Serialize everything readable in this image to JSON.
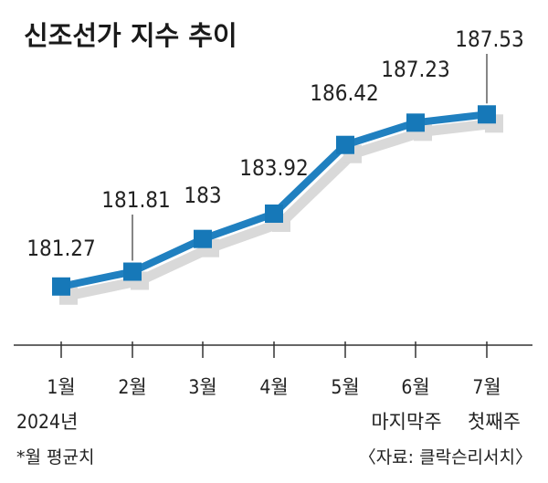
{
  "chart_data": {
    "type": "line",
    "title": "신조선가 지수 추이",
    "categories": [
      "1월",
      "2월",
      "3월",
      "4월",
      "5월",
      "6월",
      "7월"
    ],
    "values": [
      181.27,
      181.81,
      183,
      183.92,
      186.42,
      187.23,
      187.53
    ],
    "value_labels": [
      "181.27",
      "181.81",
      "183",
      "183.92",
      "186.42",
      "187.23",
      "187.53"
    ],
    "year_label": "2024년",
    "sub_labels": {
      "6월": "마지막주",
      "7월": "첫째주"
    },
    "footnote": "*월 평균치",
    "source": "〈자료: 클락슨리서치〉",
    "ylim": [
      180.2,
      189.3
    ],
    "grid": false,
    "colors": {
      "line": "#2080c0",
      "marker": "#1678b8",
      "shadow": "#d9d9d9",
      "axis": "#333333",
      "leader": "#444444"
    }
  }
}
